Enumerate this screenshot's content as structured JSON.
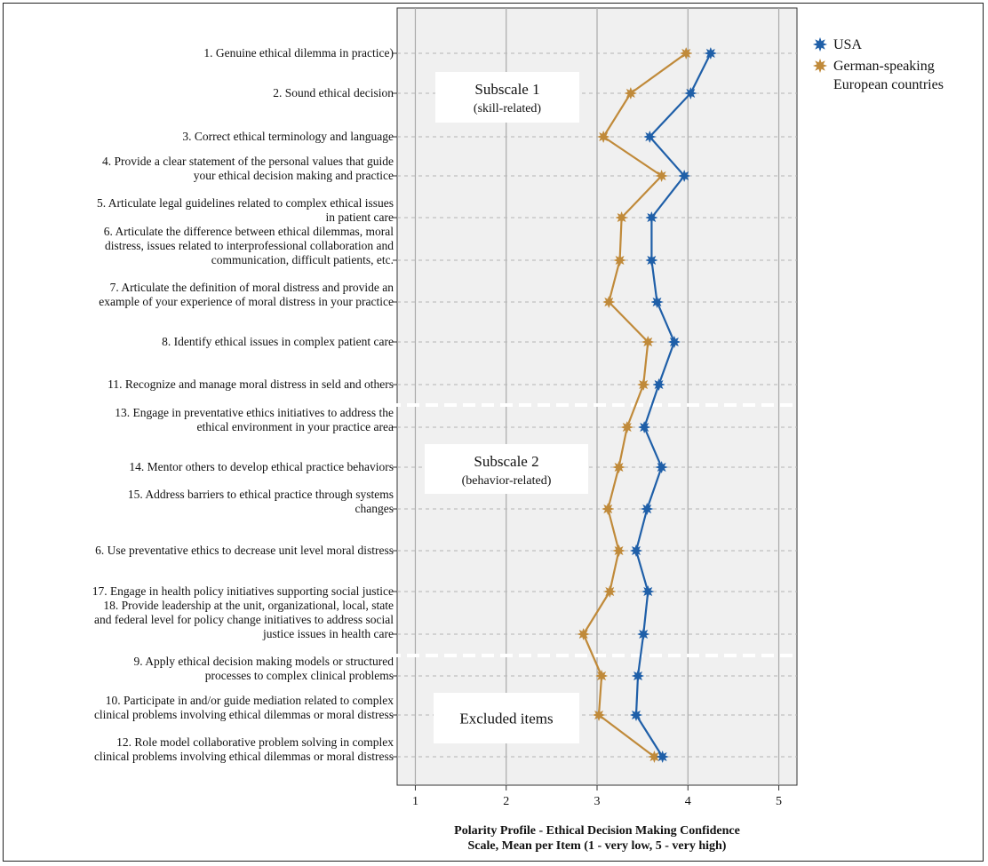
{
  "chart_data": {
    "type": "line",
    "orientation": "horizontal-profile",
    "xlabel_lines": [
      "Polarity Profile - Ethical Decision Making Confidence",
      "Scale, Mean per Item (1 - very low, 5 - very high)"
    ],
    "xlim": [
      0.8,
      5.2
    ],
    "xticks": [
      "1",
      "2",
      "3",
      "4",
      "5"
    ],
    "grid": true,
    "legend_placement": "top-right",
    "items": [
      {
        "lines": [
          "1. Genuine ethical dilemma in practice)"
        ]
      },
      {
        "lines": [
          "2. Sound ethical decision"
        ]
      },
      {
        "lines": [
          "3. Correct ethical terminology and language"
        ]
      },
      {
        "lines": [
          "4. Provide a clear statement of the personal values that guide",
          "your ethical decision making and practice"
        ]
      },
      {
        "lines": [
          "5. Articulate legal guidelines related to complex ethical issues",
          "in patient care"
        ]
      },
      {
        "lines": [
          "6. Articulate the difference between ethical dilemmas, moral",
          "distress, issues related to interprofessional collaboration and",
          "communication, difficult patients, etc."
        ]
      },
      {
        "lines": [
          "7. Articulate the definition of moral distress and provide an",
          "example of your experience of moral distress in your practice"
        ]
      },
      {
        "lines": [
          "8. Identify ethical issues in complex patient care"
        ]
      },
      {
        "lines": [
          "11. Recognize and manage moral distress in seld and others"
        ]
      },
      {
        "lines": [
          "13. Engage in preventative ethics initiatives to address the",
          "ethical  environment in your practice area"
        ]
      },
      {
        "lines": [
          "14. Mentor others to develop ethical practice behaviors"
        ]
      },
      {
        "lines": [
          "15. Address barriers to ethical practice through systems",
          "changes"
        ]
      },
      {
        "lines": [
          "6. Use preventative ethics to decrease unit level moral distress"
        ]
      },
      {
        "lines": [
          "17. Engage in health policy initiatives supporting social justice"
        ]
      },
      {
        "lines": [
          "18. Provide leadership at the unit, organizational, local, state",
          "and federal level for policy change initiatives to address social",
          "justice issues in health care"
        ]
      },
      {
        "lines": [
          "9. Apply ethical decision making models or structured",
          "processes to complex clinical problems"
        ]
      },
      {
        "lines": [
          "10. Participate in and/or guide mediation related to complex",
          "clinical problems involving ethical dilemmas or moral distress"
        ]
      },
      {
        "lines": [
          "12. Role model collaborative problem solving in complex",
          "clinical problems involving ethical dilemmas or moral distress"
        ]
      }
    ],
    "series": [
      {
        "name": "USA",
        "color": "#1f5fa8",
        "values": [
          4.25,
          4.03,
          3.58,
          3.96,
          3.6,
          3.6,
          3.66,
          3.85,
          3.68,
          3.52,
          3.71,
          3.55,
          3.43,
          3.56,
          3.51,
          3.45,
          3.43,
          3.72
        ]
      },
      {
        "name": "German-speaking European countries",
        "legend_lines": [
          "German-speaking",
          "European countries"
        ],
        "color": "#c08a3a",
        "values": [
          3.98,
          3.37,
          3.07,
          3.71,
          3.27,
          3.25,
          3.13,
          3.56,
          3.51,
          3.33,
          3.24,
          3.12,
          3.24,
          3.14,
          2.85,
          3.05,
          3.02,
          3.63
        ]
      }
    ],
    "annotations": [
      {
        "title": "Subscale 1",
        "subtitle": "(skill-related)"
      },
      {
        "title": "Subscale 2",
        "subtitle": "(behavior-related)"
      },
      {
        "title": "Excluded items",
        "subtitle": ""
      }
    ]
  }
}
